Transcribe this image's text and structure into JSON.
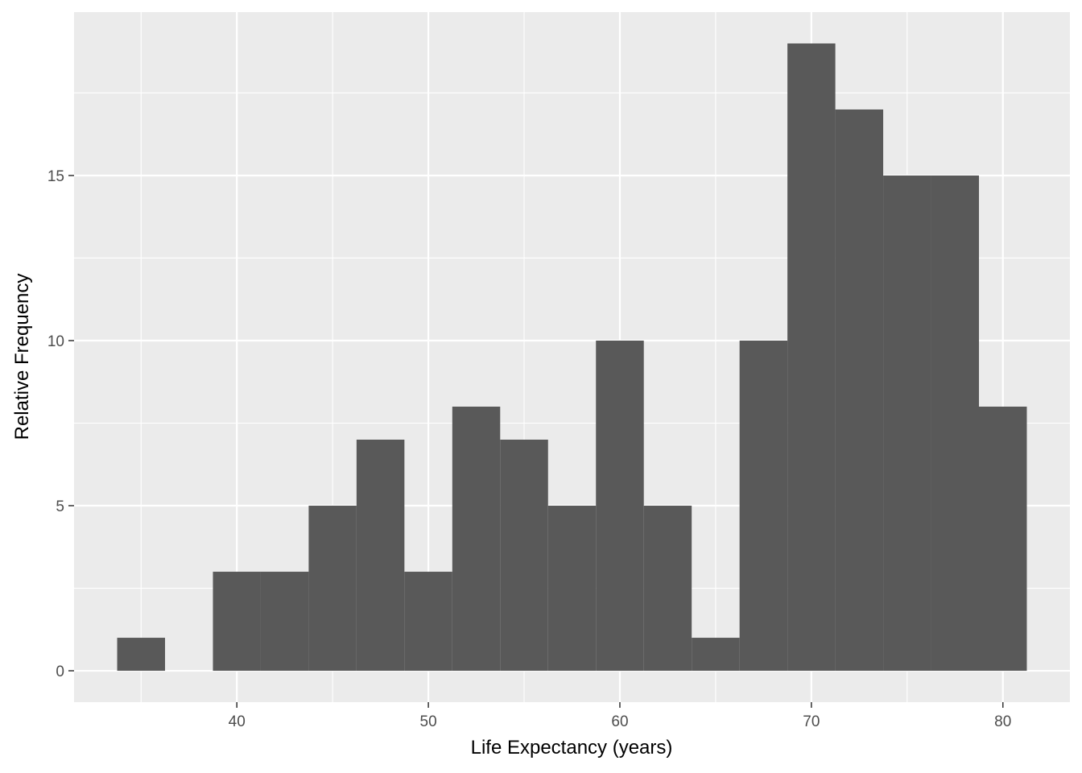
{
  "chart_data": {
    "type": "bar",
    "subtype": "histogram",
    "xlabel": "Life Expectancy (years)",
    "ylabel": "Relative Frequency",
    "bin_width": 2.5,
    "bins": [
      {
        "start": 33.75,
        "end": 36.25,
        "value": 1
      },
      {
        "start": 36.25,
        "end": 38.75,
        "value": 0
      },
      {
        "start": 38.75,
        "end": 41.25,
        "value": 3
      },
      {
        "start": 41.25,
        "end": 43.75,
        "value": 3
      },
      {
        "start": 43.75,
        "end": 46.25,
        "value": 5
      },
      {
        "start": 46.25,
        "end": 48.75,
        "value": 7
      },
      {
        "start": 48.75,
        "end": 51.25,
        "value": 3
      },
      {
        "start": 51.25,
        "end": 53.75,
        "value": 8
      },
      {
        "start": 53.75,
        "end": 56.25,
        "value": 7
      },
      {
        "start": 56.25,
        "end": 58.75,
        "value": 5
      },
      {
        "start": 58.75,
        "end": 61.25,
        "value": 10
      },
      {
        "start": 61.25,
        "end": 63.75,
        "value": 5
      },
      {
        "start": 63.75,
        "end": 66.25,
        "value": 1
      },
      {
        "start": 66.25,
        "end": 68.75,
        "value": 10
      },
      {
        "start": 68.75,
        "end": 71.25,
        "value": 19
      },
      {
        "start": 71.25,
        "end": 73.75,
        "value": 17
      },
      {
        "start": 73.75,
        "end": 76.25,
        "value": 15
      },
      {
        "start": 76.25,
        "end": 78.75,
        "value": 15
      },
      {
        "start": 78.75,
        "end": 81.25,
        "value": 8
      }
    ],
    "xlim": [
      31.5,
      83.5
    ],
    "ylim": [
      -0.95,
      19.95
    ],
    "x_major_ticks": [
      40,
      50,
      60,
      70,
      80
    ],
    "x_tick_labels": [
      "40",
      "50",
      "60",
      "70",
      "80"
    ],
    "x_minor_ticks": [
      35,
      45,
      55,
      65,
      75
    ],
    "y_major_ticks": [
      0,
      5,
      10,
      15
    ],
    "y_tick_labels": [
      "0",
      "5",
      "10",
      "15"
    ],
    "y_minor_ticks": [
      2.5,
      7.5,
      12.5,
      17.5
    ],
    "grid": true,
    "legend": "none",
    "colors": {
      "bar": "#595959",
      "panel_background": "#ebebeb",
      "grid": "#ffffff",
      "tick_label": "#4d4d4d",
      "tick_mark": "#333333"
    }
  }
}
